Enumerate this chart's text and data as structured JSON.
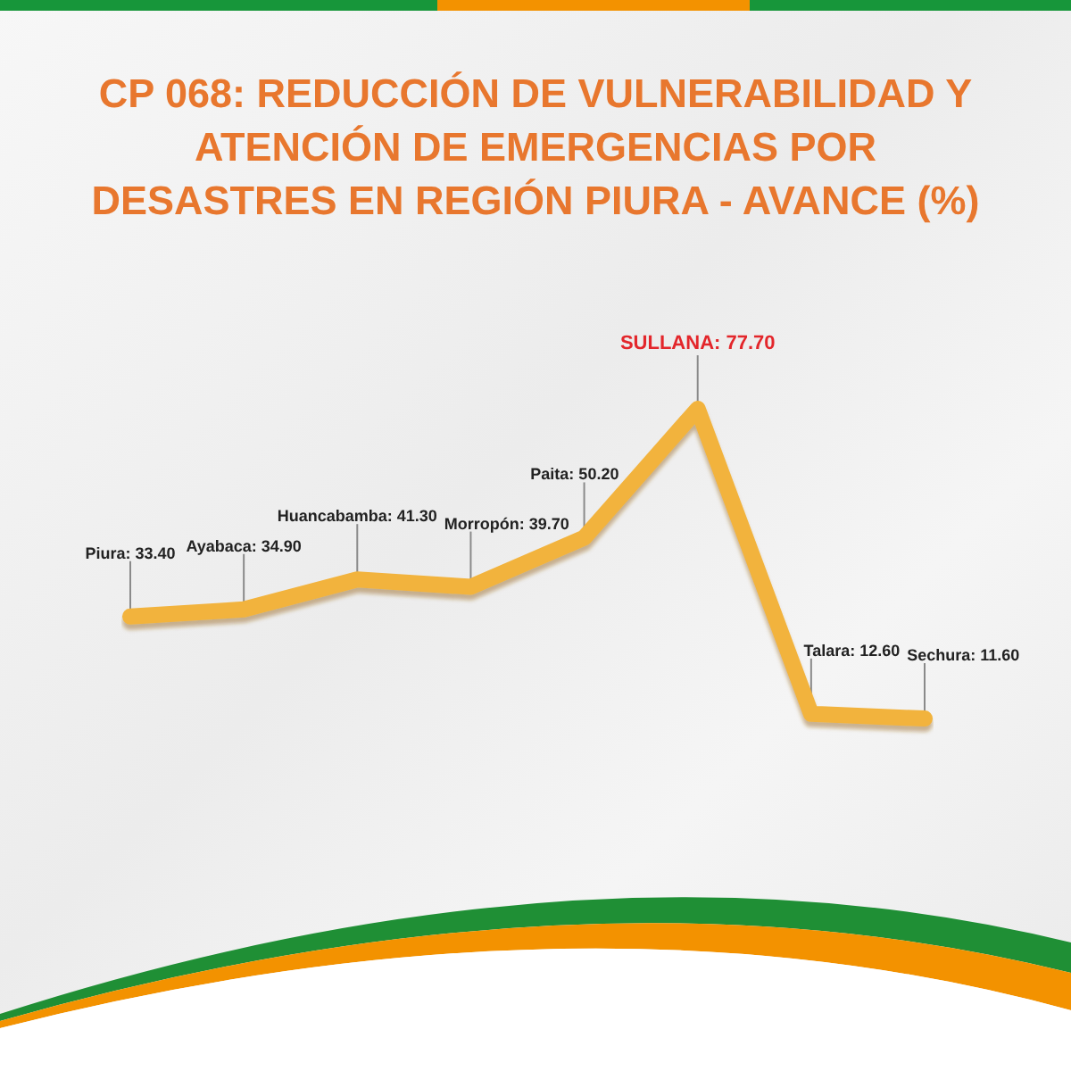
{
  "chart_data": {
    "type": "line",
    "title": "CP 068: REDUCCIÓN DE VULNERABILIDAD Y ATENCIÓN DE EMERGENCIAS POR DESASTRES EN REGIÓN PIURA - AVANCE (%)",
    "categories": [
      null,
      null,
      null,
      null,
      null,
      null,
      null,
      null
    ],
    "values": [
      33.4,
      34.9,
      41.3,
      39.7,
      50.2,
      77.7,
      12.6,
      11.6
    ],
    "color": "#f2b33d",
    "value_labels": [
      "Piura: 33.40",
      "Ayabaca: 34.90",
      "Huancabamba: 41.30",
      "Morropón: 39.70",
      "Paita: 50.20",
      null,
      "Talara: 12.60",
      "Sechura: 11.60"
    ],
    "annotations": [
      {
        "text": "SULLANA: 77.70",
        "y": 77.7
      }
    ],
    "marker": "none",
    "tick_labels": false
  }
}
